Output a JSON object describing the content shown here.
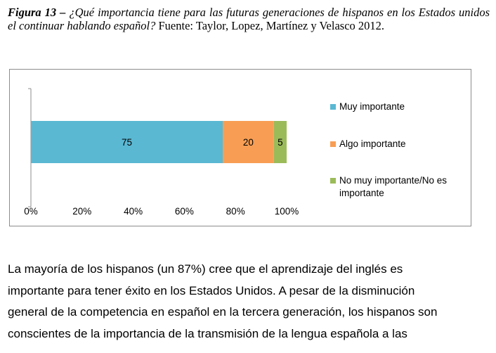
{
  "caption": {
    "figure_label": "Figura 13",
    "dash": " – ",
    "question": "¿Qué importancia tiene para las futuras generaciones de hispanos en los Estados unidos el continuar hablando español?",
    "source": " Fuente: Taylor, Lopez, Martínez y Velasco 2012."
  },
  "chart_data": {
    "type": "bar",
    "orientation": "horizontal",
    "stacked": true,
    "categories": [
      ""
    ],
    "series": [
      {
        "name": "Muy importante",
        "values": [
          75
        ],
        "color": "#5ab8d3"
      },
      {
        "name": "Algo importante",
        "values": [
          20
        ],
        "color": "#f79e54"
      },
      {
        "name": "No muy importante/No es importante",
        "values": [
          5
        ],
        "color": "#9bbb59"
      }
    ],
    "data_labels": [
      "75",
      "20",
      "5"
    ],
    "x_ticks": [
      "0%",
      "20%",
      "40%",
      "60%",
      "80%",
      "100%"
    ],
    "xlim": [
      0,
      100
    ],
    "grid": false,
    "legend_position": "right",
    "title": "",
    "xlabel": "",
    "ylabel": ""
  },
  "legend": {
    "items": [
      {
        "label": "Muy importante",
        "color": "#5ab8d3"
      },
      {
        "label": "Algo importante",
        "color": "#f79e54"
      },
      {
        "label": "No muy importante/No es importante",
        "color": "#9bbb59"
      }
    ]
  },
  "body": {
    "lines": [
      "La mayoría de los hispanos (un 87%) cree que el aprendizaje del inglés es",
      "importante para tener éxito en los Estados Unidos. A pesar de la disminución",
      "general de la competencia en español en la tercera generación, los hispanos son",
      "conscientes de la importancia de la transmisión de la lengua española a las"
    ]
  }
}
